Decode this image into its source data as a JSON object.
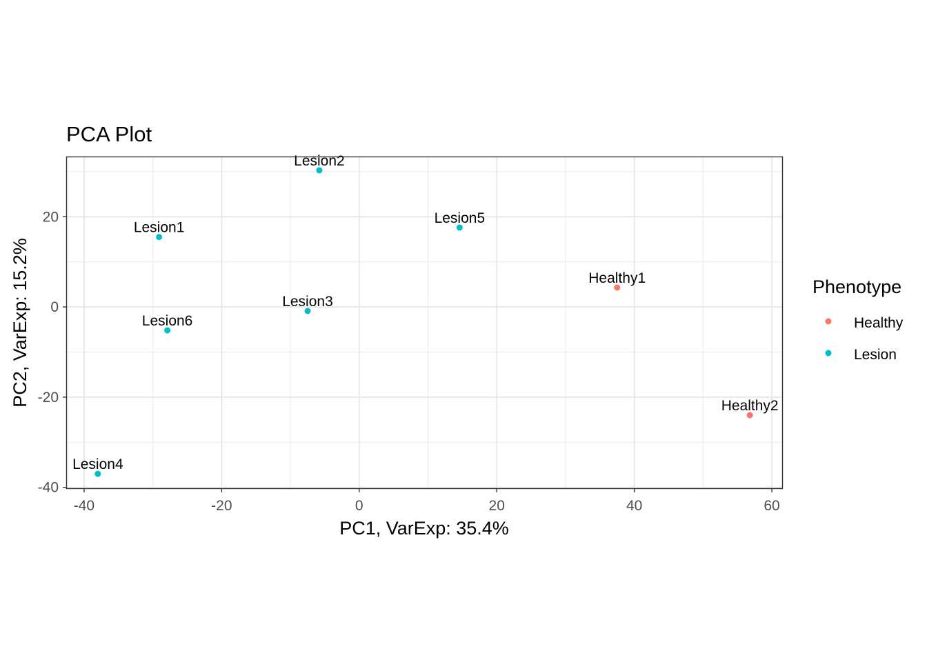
{
  "chart_data": {
    "type": "scatter",
    "title": "PCA Plot",
    "xlabel": "PC1, VarExp: 35.4%",
    "ylabel": "PC2, VarExp: 15.2%",
    "xlim": [
      -42.5,
      61.5
    ],
    "ylim": [
      -40.2,
      33.2
    ],
    "xticks": [
      -40,
      -20,
      0,
      20,
      40,
      60
    ],
    "yticks": [
      -40,
      -20,
      0,
      20
    ],
    "grid": true,
    "legend": {
      "title": "Phenotype",
      "placement": "right",
      "entries": [
        {
          "label": "Healthy",
          "color": "#F8766D"
        },
        {
          "label": "Lesion",
          "color": "#00BFC4"
        }
      ]
    },
    "points": [
      {
        "label": "Lesion1",
        "x": -29.1,
        "y": 15.5,
        "group": "Lesion"
      },
      {
        "label": "Lesion2",
        "x": -5.8,
        "y": 30.3,
        "group": "Lesion"
      },
      {
        "label": "Lesion3",
        "x": -7.5,
        "y": -0.9,
        "group": "Lesion"
      },
      {
        "label": "Lesion4",
        "x": -38.0,
        "y": -37.0,
        "group": "Lesion"
      },
      {
        "label": "Lesion5",
        "x": 14.6,
        "y": 17.6,
        "group": "Lesion"
      },
      {
        "label": "Lesion6",
        "x": -27.9,
        "y": -5.2,
        "group": "Lesion"
      },
      {
        "label": "Healthy1",
        "x": 37.5,
        "y": 4.3,
        "group": "Healthy"
      },
      {
        "label": "Healthy2",
        "x": 56.8,
        "y": -24.0,
        "group": "Healthy"
      }
    ]
  }
}
